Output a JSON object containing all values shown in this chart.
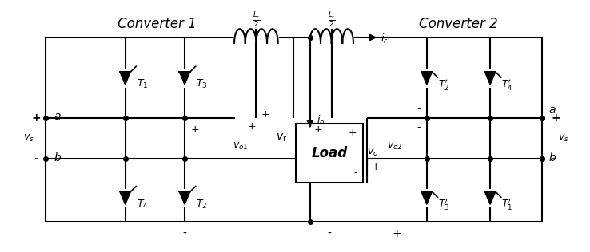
{
  "bg_color": "#ffffff",
  "converter1_label": "Converter 1",
  "converter2_label": "Converter 2",
  "load_label": "Load",
  "Lr_2_label": "$\\frac{L_r}{2}$",
  "ir_label": "$i_r$",
  "io_label": "$i_o$",
  "vo_label": "$v_o$",
  "vo1_label": "$v_{o1}$",
  "vo2_label": "$v_{o2}$",
  "vr_label": "$v_\\mathrm{r}$",
  "vs_label": "$v_s$",
  "a_label": "$a$",
  "b_label": "$b$",
  "T1_label": "$T_1$",
  "T2_label": "$T_2$",
  "T3_label": "$T_3$",
  "T4_label": "$T_4$",
  "T1p_label": "$T_1'$",
  "T2p_label": "$T_2'$",
  "T3p_label": "$T_3'$",
  "T4p_label": "$T_4'$",
  "plus": "+",
  "minus": "-"
}
